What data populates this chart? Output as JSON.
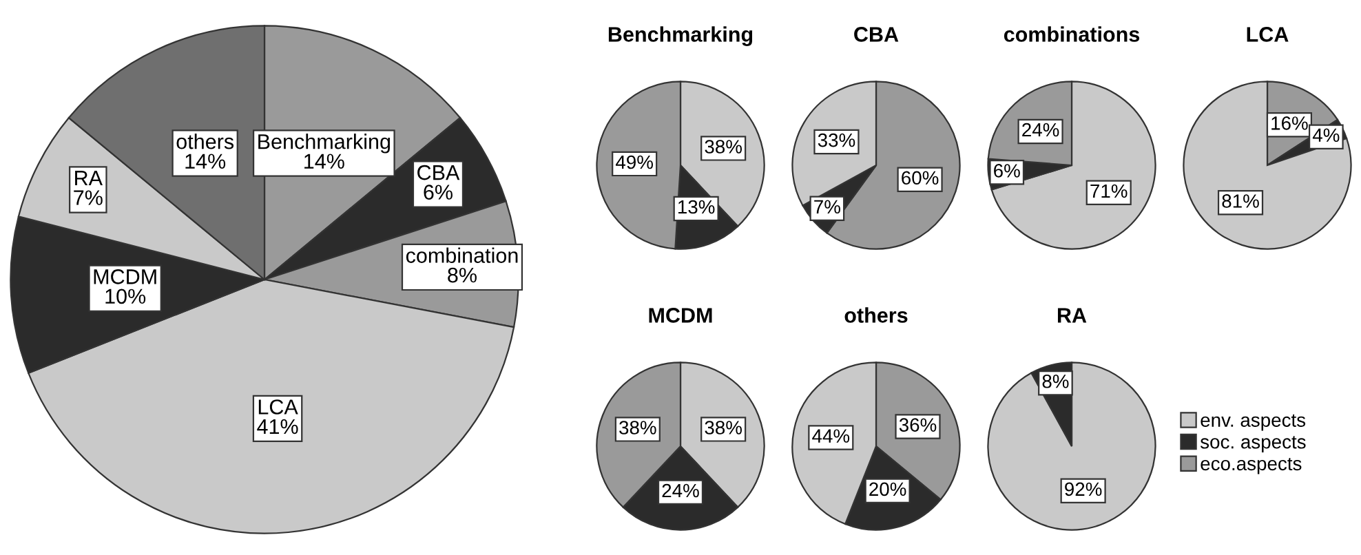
{
  "chart_data": [
    {
      "type": "pie",
      "categories": [
        "Benchmarking",
        "CBA",
        "combination",
        "LCA",
        "MCDM",
        "RA",
        "others"
      ],
      "values": [
        14,
        6,
        8,
        41,
        10,
        7,
        14
      ],
      "value_labels": [
        "14%",
        "6%",
        "8%",
        "41%",
        "10%",
        "7%",
        "14%"
      ],
      "colors": [
        "#9a9a9a",
        "#2b2b2b",
        "#9a9a9a",
        "#c9c9c9",
        "#2b2b2b",
        "#c9c9c9",
        "#6f6f6f"
      ]
    },
    {
      "type": "pie",
      "title": "Benchmarking",
      "categories": [
        "env. aspects",
        "soc. aspects",
        "eco.aspects"
      ],
      "values": [
        38,
        13,
        49
      ],
      "value_labels": [
        "38%",
        "13%",
        "49%"
      ],
      "colors": [
        "#c9c9c9",
        "#2b2b2b",
        "#9a9a9a"
      ],
      "legend": "right"
    },
    {
      "type": "pie",
      "title": "CBA",
      "categories": [
        null,
        null,
        null
      ],
      "values": [
        60,
        7,
        33
      ],
      "value_labels": [
        "60%",
        "7%",
        "33%"
      ],
      "colors": [
        "#9a9a9a",
        "#2b2b2b",
        "#c9c9c9"
      ]
    },
    {
      "type": "pie",
      "title": "combinations",
      "categories": [
        null,
        null,
        null
      ],
      "values": [
        71,
        6,
        24
      ],
      "value_labels": [
        "71%",
        "6%",
        "24%"
      ],
      "colors": [
        "#c9c9c9",
        "#2b2b2b",
        "#9a9a9a"
      ]
    },
    {
      "type": "pie",
      "title": "LCA",
      "categories": [
        null,
        null,
        null
      ],
      "values": [
        16,
        4,
        81
      ],
      "value_labels": [
        "16%",
        "4%",
        "81%"
      ],
      "colors": [
        "#9a9a9a",
        "#2b2b2b",
        "#c9c9c9"
      ]
    },
    {
      "type": "pie",
      "title": "MCDM",
      "categories": [
        null,
        null,
        null
      ],
      "values": [
        38,
        24,
        38
      ],
      "value_labels": [
        "38%",
        "24%",
        "38%"
      ],
      "colors": [
        "#c9c9c9",
        "#2b2b2b",
        "#9a9a9a"
      ]
    },
    {
      "type": "pie",
      "title": "others",
      "categories": [
        null,
        null,
        null
      ],
      "values": [
        36,
        20,
        44
      ],
      "value_labels": [
        "36%",
        "20%",
        "44%"
      ],
      "colors": [
        "#9a9a9a",
        "#2b2b2b",
        "#c9c9c9"
      ]
    },
    {
      "type": "pie",
      "title": "RA",
      "categories": [
        null,
        null
      ],
      "values": [
        92,
        8
      ],
      "value_labels": [
        "92%",
        "8%"
      ],
      "colors": [
        "#c9c9c9",
        "#2b2b2b"
      ]
    }
  ]
}
